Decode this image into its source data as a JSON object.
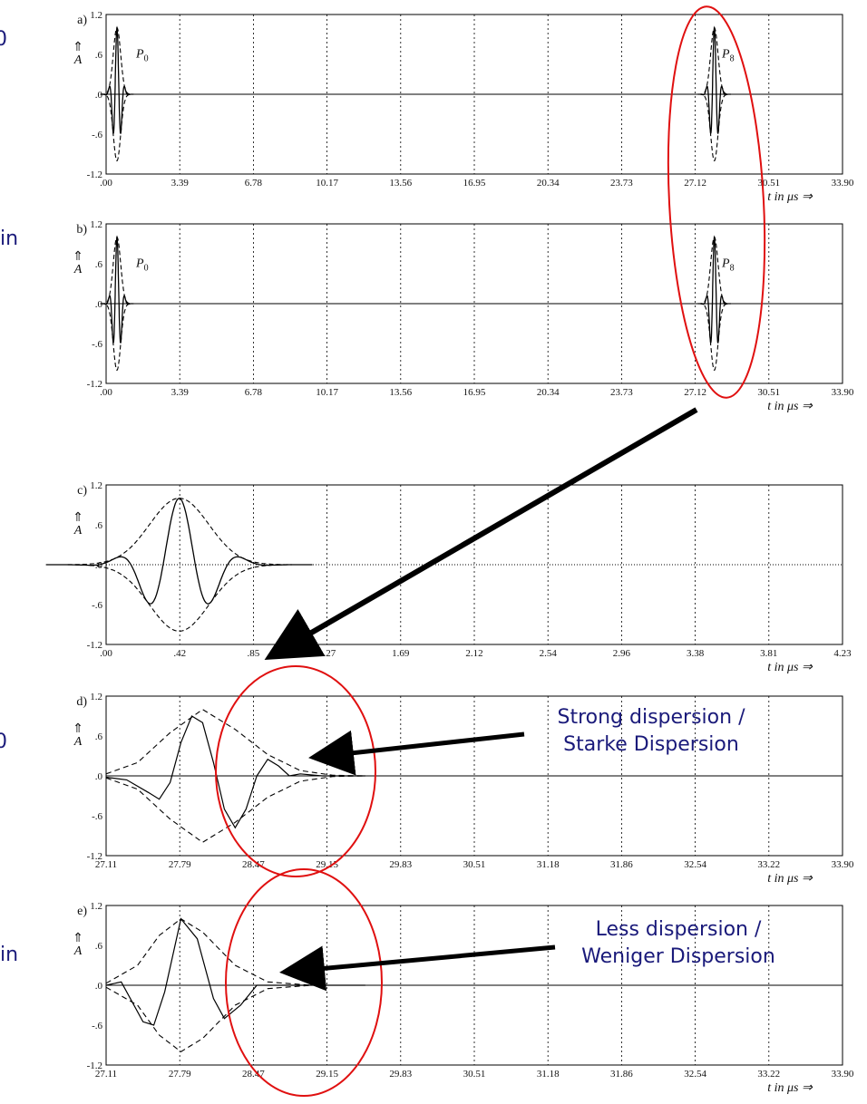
{
  "side_fragments": [
    "0",
    "in",
    "0",
    "in"
  ],
  "panels": [
    {
      "label": "a)",
      "yticks": [
        "1.2",
        ".6",
        ".0",
        "-.6",
        "-1.2"
      ],
      "ylabel_arrow": "⇑",
      "ylabel": "A",
      "xticks": [
        ".00",
        "3.39",
        "6.78",
        "10.17",
        "13.56",
        "16.95",
        "20.34",
        "23.73",
        "27.12",
        "30.51",
        "33.90"
      ],
      "xlabel": "t in μs ⇒",
      "pulse_labels": [
        {
          "main": "P",
          "sub": "0"
        },
        {
          "main": "P",
          "sub": "8"
        }
      ]
    },
    {
      "label": "b)",
      "yticks": [
        "1.2",
        ".6",
        ".0",
        "-.6",
        "-1.2"
      ],
      "ylabel_arrow": "⇑",
      "ylabel": "A",
      "xticks": [
        ".00",
        "3.39",
        "6.78",
        "10.17",
        "13.56",
        "16.95",
        "20.34",
        "23.73",
        "27.12",
        "30.51",
        "33.90"
      ],
      "xlabel": "t in μs ⇒",
      "pulse_labels": [
        {
          "main": "P",
          "sub": "0"
        },
        {
          "main": "P",
          "sub": "8"
        }
      ]
    },
    {
      "label": "c)",
      "yticks": [
        "1.2",
        ".6",
        ".0",
        "-.6",
        "-1.2"
      ],
      "ylabel_arrow": "⇑",
      "ylabel": "A",
      "xticks": [
        ".00",
        ".42",
        ".85",
        "1.27",
        "1.69",
        "2.12",
        "2.54",
        "2.96",
        "3.38",
        "3.81",
        "4.23"
      ],
      "xlabel": "t in μs ⇒",
      "pulse_labels": []
    },
    {
      "label": "d)",
      "yticks": [
        "1.2",
        ".6",
        ".0",
        "-.6",
        "-1.2"
      ],
      "ylabel_arrow": "⇑",
      "ylabel": "A",
      "xticks": [
        "27.11",
        "27.79",
        "28.47",
        "29.15",
        "29.83",
        "30.51",
        "31.18",
        "31.86",
        "32.54",
        "33.22",
        "33.90"
      ],
      "xlabel": "t in μs ⇒",
      "pulse_labels": []
    },
    {
      "label": "e)",
      "yticks": [
        "1.2",
        ".6",
        ".0",
        "-.6",
        "-1.2"
      ],
      "ylabel_arrow": "⇑",
      "ylabel": "A",
      "xticks": [
        "27.11",
        "27.79",
        "28.47",
        "29.15",
        "29.83",
        "30.51",
        "31.18",
        "31.86",
        "32.54",
        "33.22",
        "33.90"
      ],
      "xlabel": "t in μs ⇒",
      "pulse_labels": []
    }
  ],
  "annotations": [
    {
      "lines": [
        "Strong dispersion /",
        "Starke Dispersion"
      ]
    },
    {
      "lines": [
        "Less dispersion /",
        "Weniger Dispersion"
      ]
    }
  ],
  "colors": {
    "annotation_text": "#1a1a7a",
    "ellipse": "#e01010",
    "arrow": "#000000"
  },
  "chart_data": [
    {
      "type": "line",
      "panel": "a",
      "xlim": [
        0,
        33.9
      ],
      "ylim": [
        -1.2,
        1.2
      ],
      "grid": "vertical-dotted",
      "series": [
        {
          "style": "solid",
          "pulses": [
            {
              "center": 0.5,
              "sigma": 0.17,
              "period": 0.37,
              "amp": 1.0
            },
            {
              "center": 28.0,
              "sigma": 0.17,
              "period": 0.37,
              "amp": 1.0,
              "dispersed": true
            }
          ]
        },
        {
          "style": "dashed-envelope",
          "pulses": [
            {
              "center": 0.5,
              "sigma": 0.17,
              "amp": 1.0
            },
            {
              "center": 28.0,
              "sigma": 0.17,
              "amp": 1.0
            }
          ]
        }
      ]
    },
    {
      "type": "line",
      "panel": "b",
      "xlim": [
        0,
        33.9
      ],
      "ylim": [
        -1.2,
        1.2
      ],
      "grid": "vertical-dotted",
      "series": [
        {
          "style": "solid",
          "pulses": [
            {
              "center": 0.5,
              "sigma": 0.17,
              "period": 0.37,
              "amp": 1.0
            },
            {
              "center": 28.0,
              "sigma": 0.17,
              "period": 0.37,
              "amp": 1.0
            }
          ]
        },
        {
          "style": "dashed-envelope",
          "pulses": [
            {
              "center": 0.5,
              "sigma": 0.17,
              "amp": 1.0
            },
            {
              "center": 28.0,
              "sigma": 0.17,
              "amp": 1.0
            }
          ]
        }
      ]
    },
    {
      "type": "line",
      "panel": "c",
      "xlim": [
        0,
        4.23
      ],
      "ylim": [
        -1.2,
        1.2
      ],
      "grid": "vertical-dotted",
      "series": [
        {
          "style": "solid",
          "pulses": [
            {
              "center": 0.42,
              "sigma": 0.17,
              "period": 0.37,
              "amp": 1.0
            }
          ]
        },
        {
          "style": "dashed-envelope",
          "pulses": [
            {
              "center": 0.42,
              "sigma": 0.17,
              "amp": 1.0
            }
          ]
        }
      ]
    },
    {
      "type": "line",
      "panel": "d",
      "xlim": [
        27.11,
        33.9
      ],
      "ylim": [
        -1.2,
        1.2
      ],
      "grid": "vertical-dotted",
      "series": [
        {
          "style": "solid",
          "points": [
            [
              27.11,
              -0.02
            ],
            [
              27.3,
              -0.06
            ],
            [
              27.5,
              -0.25
            ],
            [
              27.6,
              -0.35
            ],
            [
              27.7,
              -0.1
            ],
            [
              27.8,
              0.5
            ],
            [
              27.9,
              0.9
            ],
            [
              28.0,
              0.8
            ],
            [
              28.1,
              0.2
            ],
            [
              28.2,
              -0.5
            ],
            [
              28.3,
              -0.78
            ],
            [
              28.4,
              -0.5
            ],
            [
              28.5,
              0.0
            ],
            [
              28.6,
              0.25
            ],
            [
              28.7,
              0.15
            ],
            [
              28.8,
              0.0
            ],
            [
              28.9,
              0.03
            ],
            [
              29.1,
              0.0
            ],
            [
              29.5,
              0.0
            ]
          ]
        },
        {
          "style": "dashed-envelope",
          "points": [
            [
              27.11,
              0.03
            ],
            [
              27.4,
              0.2
            ],
            [
              27.7,
              0.65
            ],
            [
              28.0,
              1.0
            ],
            [
              28.3,
              0.7
            ],
            [
              28.6,
              0.32
            ],
            [
              28.9,
              0.08
            ],
            [
              29.2,
              0.01
            ],
            [
              29.5,
              0.0
            ]
          ]
        }
      ]
    },
    {
      "type": "line",
      "panel": "e",
      "xlim": [
        27.11,
        33.9
      ],
      "ylim": [
        -1.2,
        1.2
      ],
      "grid": "vertical-dotted",
      "series": [
        {
          "style": "solid",
          "points": [
            [
              27.11,
              0.0
            ],
            [
              27.25,
              0.05
            ],
            [
              27.45,
              -0.55
            ],
            [
              27.55,
              -0.6
            ],
            [
              27.65,
              -0.1
            ],
            [
              27.8,
              1.0
            ],
            [
              27.95,
              0.7
            ],
            [
              28.1,
              -0.2
            ],
            [
              28.2,
              -0.5
            ],
            [
              28.35,
              -0.3
            ],
            [
              28.5,
              0.0
            ],
            [
              28.7,
              0.0
            ],
            [
              29.5,
              0.0
            ]
          ]
        },
        {
          "style": "dashed-envelope",
          "points": [
            [
              27.11,
              0.03
            ],
            [
              27.4,
              0.3
            ],
            [
              27.6,
              0.75
            ],
            [
              27.8,
              1.0
            ],
            [
              28.0,
              0.8
            ],
            [
              28.3,
              0.3
            ],
            [
              28.6,
              0.05
            ],
            [
              29.0,
              0.0
            ]
          ]
        }
      ]
    }
  ]
}
